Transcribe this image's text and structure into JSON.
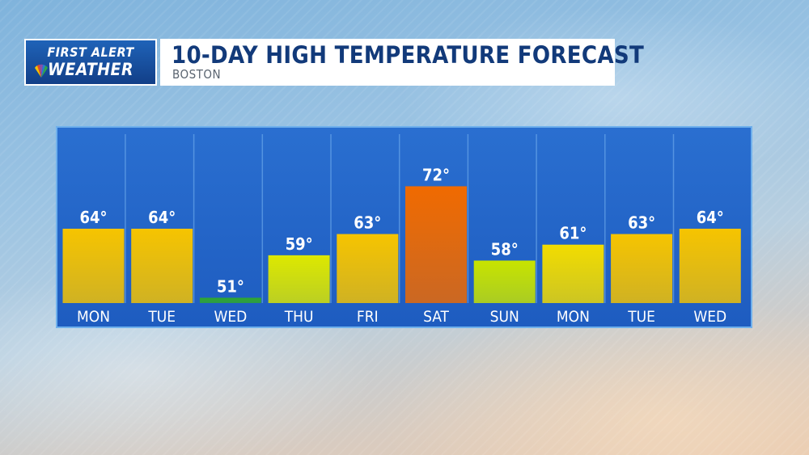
{
  "header": {
    "logo_line1": "FIRST ALERT",
    "logo_line2": "WEATHER",
    "title": "10-DAY HIGH TEMPERATURE FORECAST",
    "subtitle": "BOSTON"
  },
  "colors": {
    "panel_top": "#2a6fd0",
    "panel_bottom": "#1e5cc0",
    "temp_72": "#f06a00",
    "temp_63_64": "#f6c400",
    "temp_61": "#f2dc00",
    "temp_59": "#dde800",
    "temp_58": "#c8e400",
    "temp_51": "#2fa72f"
  },
  "chart_data": {
    "type": "bar",
    "title": "10-DAY HIGH TEMPERATURE FORECAST",
    "subtitle": "BOSTON",
    "categories": [
      "MON",
      "TUE",
      "WED",
      "THU",
      "FRI",
      "SAT",
      "SUN",
      "MON",
      "TUE",
      "WED"
    ],
    "values": [
      64,
      64,
      51,
      59,
      63,
      72,
      58,
      61,
      63,
      64
    ],
    "value_labels": [
      "64°",
      "64°",
      "51°",
      "59°",
      "63°",
      "72°",
      "58°",
      "61°",
      "63°",
      "64°"
    ],
    "unit": "°F",
    "ylim": [
      50,
      75
    ],
    "xlabel": "",
    "ylabel": ""
  }
}
